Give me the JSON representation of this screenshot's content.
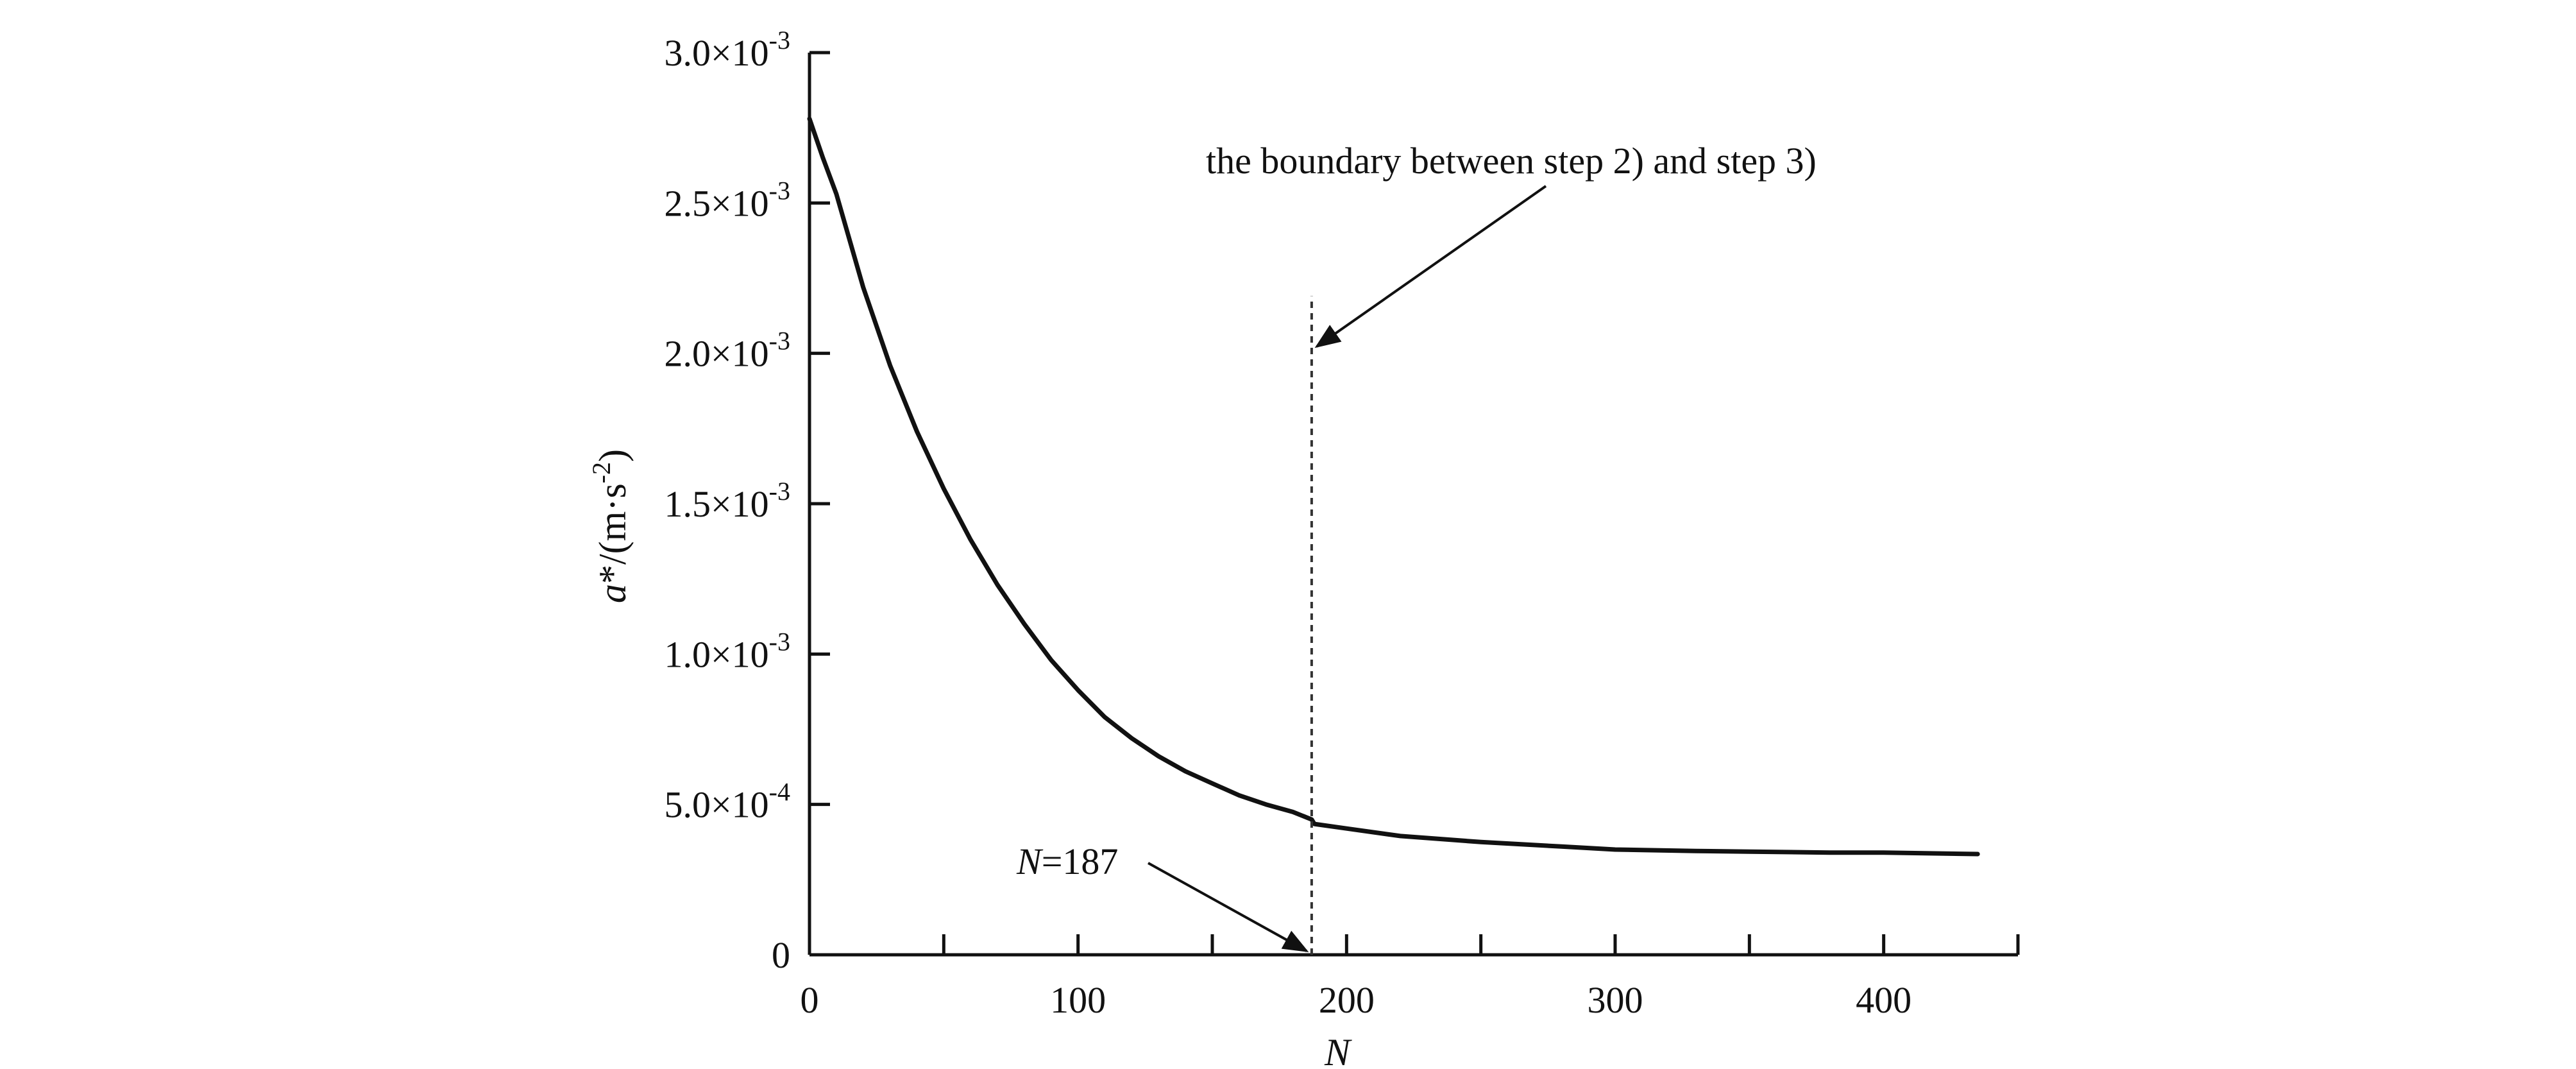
{
  "chart_data": {
    "type": "line",
    "title": "",
    "xlabel": "N",
    "ylabel_italic": "a",
    "ylabel_rest": "*/(m·s",
    "ylabel_sup": "-2",
    "ylabel_close": ")",
    "xlim": [
      0,
      450
    ],
    "ylim": [
      0,
      0.003
    ],
    "grid": false,
    "legend": "none",
    "x_ticks": [
      {
        "value": 0,
        "label": "0"
      },
      {
        "value": 100,
        "label": "100"
      },
      {
        "value": 200,
        "label": "200"
      },
      {
        "value": 300,
        "label": "300"
      },
      {
        "value": 400,
        "label": "400"
      }
    ],
    "x_minor_ticks": [
      50,
      150,
      250,
      350,
      450
    ],
    "y_ticks": [
      {
        "value": 0,
        "label": "0",
        "sup": ""
      },
      {
        "value": 0.0005,
        "label": "5.0×10",
        "sup": "-4"
      },
      {
        "value": 0.001,
        "label": "1.0×10",
        "sup": "-3"
      },
      {
        "value": 0.0015,
        "label": "1.5×10",
        "sup": "-3"
      },
      {
        "value": 0.002,
        "label": "2.0×10",
        "sup": "-3"
      },
      {
        "value": 0.0025,
        "label": "2.5×10",
        "sup": "-3"
      },
      {
        "value": 0.003,
        "label": "3.0×10",
        "sup": "-3"
      }
    ],
    "series": [
      {
        "x": [
          0,
          5,
          10,
          20,
          30,
          40,
          50,
          60,
          70,
          80,
          90,
          100,
          110,
          120,
          130,
          140,
          150,
          160,
          170,
          180,
          187,
          188,
          200,
          220,
          250,
          280,
          300,
          330,
          350,
          380,
          400,
          435
        ],
        "y": [
          0.00278,
          0.00265,
          0.00253,
          0.00222,
          0.00196,
          0.00174,
          0.00155,
          0.00138,
          0.00123,
          0.0011,
          0.00098,
          0.00088,
          0.00079,
          0.00072,
          0.00066,
          0.00061,
          0.00057,
          0.00053,
          0.0005,
          0.000475,
          0.00045,
          0.000435,
          0.00042,
          0.000395,
          0.000375,
          0.00036,
          0.00035,
          0.000345,
          0.000343,
          0.00034,
          0.00034,
          0.000335
        ]
      }
    ],
    "boundary_x": 187,
    "boundary_y_top": 0.00219,
    "annotations": {
      "boundary": "the boundary between step 2) and step 3)",
      "n_label_italic": "N",
      "n_label_rest": "=187"
    },
    "colors": {
      "line": "#111111",
      "axis": "#111111",
      "boundary": "#333333"
    }
  }
}
